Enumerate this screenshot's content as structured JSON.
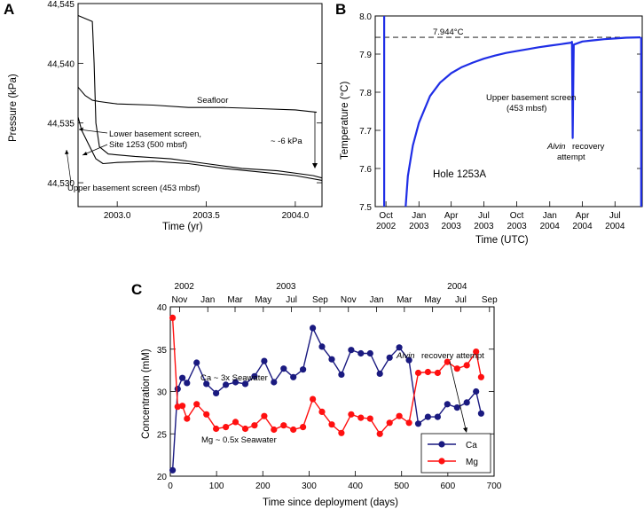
{
  "chart_data": [
    {
      "panel": "A",
      "type": "line",
      "xlabel": "Time (yr)",
      "ylabel": "Pressure (kPa)",
      "xlim": [
        2002.78,
        2004.15
      ],
      "ylim": [
        44528,
        44545
      ],
      "x_ticks": [
        {
          "value": 2003.0,
          "label": "2003.0"
        },
        {
          "value": 2003.5,
          "label": "2003.5"
        },
        {
          "value": 2004.0,
          "label": "2004.0"
        }
      ],
      "y_ticks": [
        {
          "value": 44530,
          "label": "44,530"
        },
        {
          "value": 44535,
          "label": "44,535"
        },
        {
          "value": 44540,
          "label": "44,540"
        },
        {
          "value": 44545,
          "label": "44,545"
        }
      ],
      "series": [
        {
          "name": "Seafloor",
          "x": [
            2002.78,
            2002.82,
            2002.86,
            2002.9,
            2003.0,
            2003.2,
            2003.4,
            2003.6,
            2003.8,
            2004.0,
            2004.12
          ],
          "y": [
            44538.0,
            44537.3,
            44536.9,
            44536.8,
            44536.6,
            44536.5,
            44536.3,
            44536.3,
            44536.2,
            44536.1,
            44535.9
          ]
        },
        {
          "name": "Lower basement screen, Site 1253 (500 mbsf)",
          "x": [
            2002.78,
            2002.86,
            2002.87,
            2002.88,
            2002.9,
            2002.95,
            2003.1,
            2003.3,
            2003.5,
            2003.7,
            2003.9,
            2004.1,
            2004.15
          ],
          "y": [
            44544.0,
            44543.5,
            44540.0,
            44535.0,
            44533.0,
            44532.4,
            44532.2,
            44532.0,
            44531.6,
            44531.2,
            44531.0,
            44530.6,
            44530.4
          ]
        },
        {
          "name": "Upper basement screen (453 mbsf)",
          "x": [
            2002.78,
            2002.8,
            2002.84,
            2002.88,
            2002.92,
            2003.0,
            2003.2,
            2003.4,
            2003.6,
            2003.8,
            2004.0,
            2004.15
          ],
          "y": [
            44535.5,
            44534.4,
            44533.2,
            44532.0,
            44531.6,
            44531.7,
            44531.8,
            44531.6,
            44531.2,
            44530.9,
            44530.6,
            44530.2
          ]
        }
      ],
      "annotations": [
        {
          "text": "Seafloor"
        },
        {
          "text": "Lower basement screen,"
        },
        {
          "text": "Site 1253 (500 mbsf)"
        },
        {
          "text": "Upper basement screen (453 mbsf)"
        },
        {
          "text": "~ -6 kPa"
        }
      ]
    },
    {
      "panel": "B",
      "type": "line",
      "xlabel": "Time (UTC)",
      "ylabel": "Temperature (°C)",
      "xlim": [
        "2002-09-01",
        "2004-09-15"
      ],
      "ylim": [
        7.5,
        8.0
      ],
      "x_ticks": [
        {
          "value": "2002-10-01",
          "label": [
            "Oct",
            "2002"
          ]
        },
        {
          "value": "2003-01-01",
          "label": [
            "Jan",
            "2003"
          ]
        },
        {
          "value": "2003-04-01",
          "label": [
            "Apr",
            "2003"
          ]
        },
        {
          "value": "2003-07-01",
          "label": [
            "Jul",
            "2003"
          ]
        },
        {
          "value": "2003-10-01",
          "label": [
            "Oct",
            "2003"
          ]
        },
        {
          "value": "2004-01-01",
          "label": [
            "Jan",
            "2004"
          ]
        },
        {
          "value": "2004-04-01",
          "label": [
            "Apr",
            "2004"
          ]
        },
        {
          "value": "2004-07-01",
          "label": [
            "Jul",
            "2004"
          ]
        }
      ],
      "y_ticks": [
        {
          "value": 7.5,
          "label": "7.5"
        },
        {
          "value": 7.6,
          "label": "7.6"
        },
        {
          "value": 7.7,
          "label": "7.7"
        },
        {
          "value": 7.8,
          "label": "7.8"
        },
        {
          "value": 7.9,
          "label": "7.9"
        },
        {
          "value": 8.0,
          "label": "8.0"
        }
      ],
      "reference_line": {
        "value": 7.944,
        "label": "7.944°C",
        "style": "dashed"
      },
      "series": [
        {
          "name": "Upper basement screen (453 mbsf)",
          "x": [
            "2002-11-25",
            "2002-12-01",
            "2002-12-15",
            "2003-01-01",
            "2003-02-01",
            "2003-03-01",
            "2003-04-01",
            "2003-05-01",
            "2003-06-01",
            "2003-07-01",
            "2003-08-01",
            "2003-09-01",
            "2003-10-01",
            "2003-11-01",
            "2003-12-01",
            "2004-01-01",
            "2004-02-01",
            "2004-03-01",
            "2004-03-03",
            "2004-03-05",
            "2004-03-08",
            "2004-04-01",
            "2004-05-01",
            "2004-06-01",
            "2004-07-01",
            "2004-08-01",
            "2004-09-10"
          ],
          "y": [
            7.5,
            7.58,
            7.66,
            7.72,
            7.79,
            7.825,
            7.85,
            7.866,
            7.878,
            7.888,
            7.896,
            7.903,
            7.908,
            7.913,
            7.918,
            7.922,
            7.926,
            7.93,
            7.932,
            7.68,
            7.925,
            7.933,
            7.936,
            7.939,
            7.941,
            7.943,
            7.944
          ]
        },
        {
          "name": "deployment spike",
          "x": [
            "2002-09-26",
            "2002-09-26"
          ],
          "y": [
            7.5,
            8.0
          ]
        },
        {
          "name": "end spike",
          "x": [
            "2004-09-12",
            "2004-09-12"
          ],
          "y": [
            7.5,
            7.944
          ]
        }
      ],
      "annotations": [
        {
          "text": "Upper basement screen"
        },
        {
          "text": "(453 mbsf)"
        },
        {
          "text": "Alvin",
          "italic": true
        },
        {
          "text": "recovery"
        },
        {
          "text": "attempt"
        },
        {
          "text": "Hole 1253A"
        }
      ]
    },
    {
      "panel": "C",
      "type": "line",
      "xlabel": "Time since deployment (days)",
      "ylabel": "Concentration (mM)",
      "xlim": [
        0,
        700
      ],
      "ylim": [
        20,
        40
      ],
      "x_ticks": [
        {
          "value": 0,
          "label": "0"
        },
        {
          "value": 100,
          "label": "100"
        },
        {
          "value": 200,
          "label": "200"
        },
        {
          "value": 300,
          "label": "300"
        },
        {
          "value": 400,
          "label": "400"
        },
        {
          "value": 500,
          "label": "500"
        },
        {
          "value": 600,
          "label": "600"
        },
        {
          "value": 700,
          "label": "700"
        }
      ],
      "y_ticks": [
        {
          "value": 20,
          "label": "20"
        },
        {
          "value": 25,
          "label": "25"
        },
        {
          "value": 30,
          "label": "30"
        },
        {
          "value": 35,
          "label": "35"
        },
        {
          "value": 40,
          "label": "40"
        }
      ],
      "top_month_ticks": [
        {
          "value": 20,
          "label": "Nov"
        },
        {
          "value": 81,
          "label": "Jan"
        },
        {
          "value": 140,
          "label": "Mar"
        },
        {
          "value": 201,
          "label": "May"
        },
        {
          "value": 262,
          "label": "Jul"
        },
        {
          "value": 324,
          "label": "Sep"
        },
        {
          "value": 385,
          "label": "Nov"
        },
        {
          "value": 446,
          "label": "Jan"
        },
        {
          "value": 506,
          "label": "Mar"
        },
        {
          "value": 567,
          "label": "May"
        },
        {
          "value": 628,
          "label": "Jul"
        },
        {
          "value": 690,
          "label": "Sep"
        }
      ],
      "top_year_labels": [
        {
          "value": 30,
          "label": "2002"
        },
        {
          "value": 250,
          "label": "2003"
        },
        {
          "value": 620,
          "label": "2004"
        }
      ],
      "series": [
        {
          "name": "Ca",
          "color": "#1a1a80",
          "x": [
            5,
            16,
            26,
            36,
            57,
            78,
            99,
            120,
            141,
            162,
            182,
            203,
            224,
            245,
            266,
            287,
            308,
            328,
            349,
            370,
            391,
            412,
            432,
            453,
            474,
            495,
            516,
            536,
            557,
            578,
            599,
            620,
            641,
            661,
            672
          ],
          "y": [
            20.7,
            30.3,
            31.6,
            31.0,
            33.4,
            30.9,
            29.8,
            30.8,
            31.1,
            30.9,
            31.8,
            33.6,
            31.1,
            32.7,
            31.7,
            32.6,
            37.5,
            35.3,
            33.8,
            32.0,
            34.9,
            34.5,
            34.5,
            32.1,
            34.0,
            35.2,
            33.7,
            26.2,
            27.0,
            27.0,
            28.5,
            28.1,
            28.7,
            30.0,
            27.4
          ]
        },
        {
          "name": "Mg",
          "color": "#ff1010",
          "x": [
            5,
            16,
            26,
            36,
            57,
            78,
            99,
            120,
            141,
            162,
            182,
            203,
            224,
            245,
            266,
            287,
            308,
            328,
            349,
            370,
            391,
            412,
            432,
            453,
            474,
            495,
            516,
            536,
            557,
            578,
            599,
            620,
            641,
            661,
            672
          ],
          "y": [
            38.7,
            28.2,
            28.3,
            26.8,
            28.5,
            27.3,
            25.6,
            25.8,
            26.4,
            25.6,
            26.0,
            27.1,
            25.5,
            26.0,
            25.5,
            25.8,
            29.1,
            27.6,
            26.1,
            25.1,
            27.3,
            26.9,
            26.8,
            25.0,
            26.3,
            27.1,
            26.3,
            32.2,
            32.3,
            32.2,
            33.5,
            32.7,
            33.1,
            34.7,
            31.7
          ]
        }
      ],
      "annotations": [
        {
          "text": "Ca ~ 3x Seawater"
        },
        {
          "text": "Mg ~ 0.5x Seawater"
        },
        {
          "text": "Alvin",
          "italic": true
        },
        {
          "text": "recovery attempt"
        }
      ],
      "legend": {
        "position": "bottom-right",
        "entries": [
          "Ca",
          "Mg"
        ]
      }
    }
  ],
  "panel_labels": {
    "a": "A",
    "b": "B",
    "c": "C"
  }
}
